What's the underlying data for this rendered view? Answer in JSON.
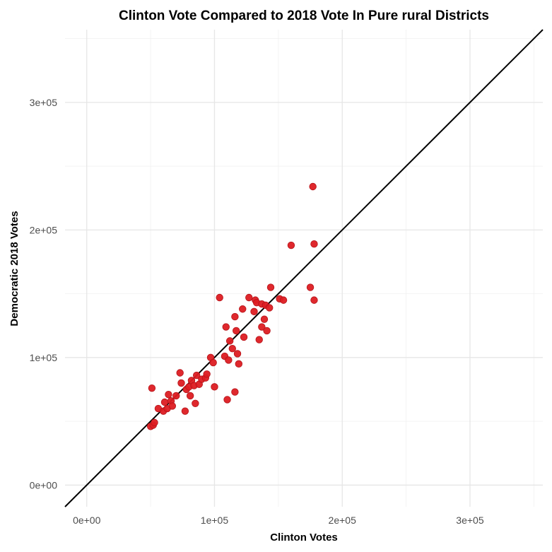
{
  "chart_data": {
    "type": "scatter",
    "title": "Clinton Vote Compared to 2018 Vote In Pure rural Districts",
    "xlabel": "Clinton Votes",
    "ylabel": "Democratic 2018 Votes",
    "xlim": [
      -17000,
      357000
    ],
    "ylim": [
      -17000,
      357000
    ],
    "x_ticks": [
      0,
      100000,
      200000,
      300000
    ],
    "x_tick_labels": [
      "0e+00",
      "1e+05",
      "2e+05",
      "3e+05"
    ],
    "y_ticks": [
      0,
      100000,
      200000,
      300000
    ],
    "y_tick_labels": [
      "0e+00",
      "1e+05",
      "2e+05",
      "3e+05"
    ],
    "reference_line": {
      "slope": 1,
      "intercept": 0,
      "color": "#000000"
    },
    "point_color": "#dd1c22",
    "grid": true,
    "points": [
      {
        "x": 51000,
        "y": 76000
      },
      {
        "x": 50000,
        "y": 46000
      },
      {
        "x": 52000,
        "y": 47000
      },
      {
        "x": 53000,
        "y": 49000
      },
      {
        "x": 56000,
        "y": 60000
      },
      {
        "x": 60000,
        "y": 58000
      },
      {
        "x": 61000,
        "y": 65000
      },
      {
        "x": 63000,
        "y": 60000
      },
      {
        "x": 64000,
        "y": 71000
      },
      {
        "x": 66000,
        "y": 66000
      },
      {
        "x": 67000,
        "y": 62000
      },
      {
        "x": 70000,
        "y": 70000
      },
      {
        "x": 73000,
        "y": 88000
      },
      {
        "x": 74000,
        "y": 80000
      },
      {
        "x": 77000,
        "y": 58000
      },
      {
        "x": 78000,
        "y": 75000
      },
      {
        "x": 80000,
        "y": 77000
      },
      {
        "x": 81000,
        "y": 70000
      },
      {
        "x": 82000,
        "y": 82000
      },
      {
        "x": 84000,
        "y": 78000
      },
      {
        "x": 85000,
        "y": 64000
      },
      {
        "x": 86000,
        "y": 86000
      },
      {
        "x": 88000,
        "y": 79000
      },
      {
        "x": 90000,
        "y": 83000
      },
      {
        "x": 93000,
        "y": 84000
      },
      {
        "x": 94000,
        "y": 87000
      },
      {
        "x": 97000,
        "y": 100000
      },
      {
        "x": 99000,
        "y": 96000
      },
      {
        "x": 100000,
        "y": 77000
      },
      {
        "x": 104000,
        "y": 147000
      },
      {
        "x": 108000,
        "y": 101000
      },
      {
        "x": 109000,
        "y": 124000
      },
      {
        "x": 110000,
        "y": 67000
      },
      {
        "x": 111000,
        "y": 98000
      },
      {
        "x": 112000,
        "y": 113000
      },
      {
        "x": 114000,
        "y": 107000
      },
      {
        "x": 116000,
        "y": 132000
      },
      {
        "x": 116000,
        "y": 73000
      },
      {
        "x": 117000,
        "y": 121000
      },
      {
        "x": 118000,
        "y": 103000
      },
      {
        "x": 119000,
        "y": 95000
      },
      {
        "x": 122000,
        "y": 138000
      },
      {
        "x": 123000,
        "y": 116000
      },
      {
        "x": 127000,
        "y": 147000
      },
      {
        "x": 131000,
        "y": 136000
      },
      {
        "x": 132000,
        "y": 145000
      },
      {
        "x": 133000,
        "y": 143000
      },
      {
        "x": 135000,
        "y": 114000
      },
      {
        "x": 137000,
        "y": 142000
      },
      {
        "x": 137000,
        "y": 124000
      },
      {
        "x": 139000,
        "y": 130000
      },
      {
        "x": 140000,
        "y": 141000
      },
      {
        "x": 141000,
        "y": 121000
      },
      {
        "x": 143000,
        "y": 139000
      },
      {
        "x": 144000,
        "y": 155000
      },
      {
        "x": 151000,
        "y": 146000
      },
      {
        "x": 154000,
        "y": 145000
      },
      {
        "x": 160000,
        "y": 188000
      },
      {
        "x": 175000,
        "y": 155000
      },
      {
        "x": 177000,
        "y": 234000
      },
      {
        "x": 178000,
        "y": 189000
      },
      {
        "x": 178000,
        "y": 145000
      }
    ]
  }
}
